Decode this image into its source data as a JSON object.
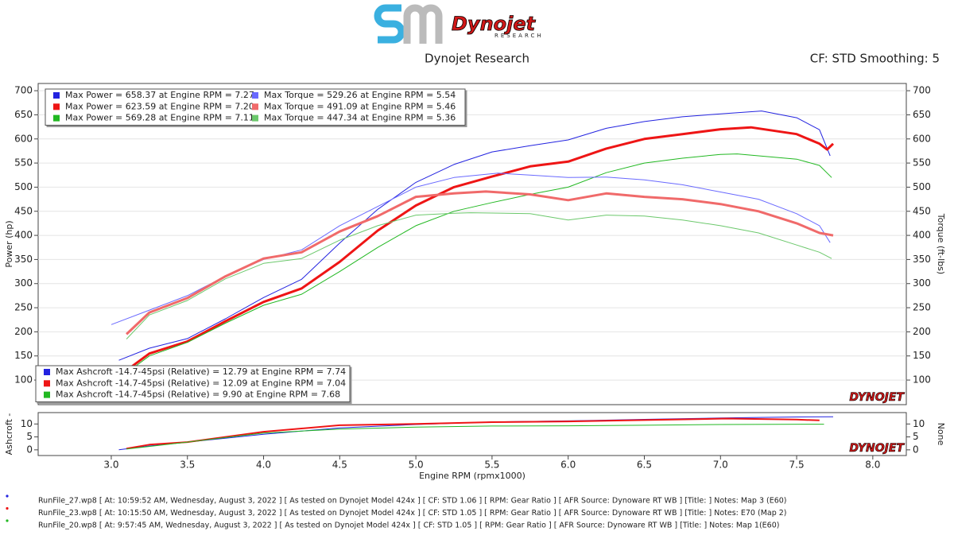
{
  "header": {
    "logo": "Dynojet",
    "logo_sub": "RESEARCH",
    "title": "Dynojet Research",
    "settings": "CF: STD Smoothing: 5"
  },
  "chart_data": [
    {
      "type": "line",
      "ylabel": "Power (hp)",
      "y2label": "Torque (ft-lbs)",
      "watermark": "DYNOJET",
      "grid": true,
      "xlim": [
        2.52,
        8.22
      ],
      "ylim": [
        49,
        715
      ],
      "yticks": [
        100,
        150,
        200,
        250,
        300,
        350,
        400,
        450,
        500,
        550,
        600,
        650,
        700
      ],
      "y2lim": [
        49,
        715
      ],
      "y2ticks": [
        100,
        150,
        200,
        250,
        300,
        350,
        400,
        450,
        500,
        550,
        600,
        650,
        700
      ],
      "series": [
        {
          "name": "Max Power = 658.37 at Engine RPM = 7.27",
          "color": "#2323e0",
          "line_width": 1,
          "x": [
            3.05,
            3.25,
            3.5,
            3.75,
            4.0,
            4.25,
            4.5,
            4.75,
            5.0,
            5.25,
            5.5,
            5.75,
            6.0,
            6.25,
            6.5,
            6.75,
            7.0,
            7.27,
            7.5,
            7.65,
            7.72
          ],
          "values": [
            141,
            166,
            186,
            227,
            271,
            309,
            384,
            454,
            510,
            547,
            573,
            586,
            598,
            622,
            636,
            646,
            652,
            658,
            644,
            619,
            565
          ]
        },
        {
          "name": "Max Power = 623.59 at Engine RPM = 7.20",
          "color": "#ee1515",
          "line_width": 3,
          "x": [
            3.1,
            3.25,
            3.5,
            3.75,
            4.0,
            4.25,
            4.5,
            4.75,
            5.0,
            5.25,
            5.5,
            5.75,
            6.0,
            6.25,
            6.5,
            6.75,
            7.0,
            7.2,
            7.5,
            7.65,
            7.7,
            7.74
          ],
          "values": [
            120,
            155,
            180,
            222,
            262,
            290,
            345,
            410,
            462,
            500,
            522,
            543,
            553,
            580,
            600,
            610,
            620,
            624,
            610,
            590,
            578,
            590
          ]
        },
        {
          "name": "Max Power = 569.28 at Engine RPM = 7.11",
          "color": "#22b822",
          "line_width": 1,
          "x": [
            3.1,
            3.25,
            3.5,
            3.75,
            4.0,
            4.25,
            4.5,
            4.75,
            5.0,
            5.25,
            5.5,
            5.75,
            6.0,
            6.25,
            6.5,
            6.75,
            7.0,
            7.11,
            7.5,
            7.65,
            7.73
          ],
          "values": [
            115,
            150,
            178,
            218,
            255,
            278,
            325,
            375,
            420,
            450,
            468,
            485,
            500,
            530,
            550,
            560,
            568,
            569,
            558,
            545,
            520
          ]
        },
        {
          "name": "Max Torque = 529.26 at Engine RPM = 5.54",
          "color": "#6a6aff",
          "line_width": 1,
          "axis": "y2",
          "x": [
            3.0,
            3.25,
            3.5,
            3.75,
            4.0,
            4.25,
            4.5,
            4.75,
            5.0,
            5.25,
            5.54,
            5.75,
            6.0,
            6.25,
            6.5,
            6.75,
            7.0,
            7.25,
            7.5,
            7.65,
            7.72
          ],
          "values": [
            215,
            245,
            275,
            315,
            350,
            370,
            420,
            460,
            500,
            520,
            529,
            525,
            520,
            521,
            515,
            505,
            490,
            475,
            445,
            420,
            385
          ]
        },
        {
          "name": "Max Torque = 491.09 at Engine RPM = 5.46",
          "color": "#f06a6a",
          "line_width": 3,
          "axis": "y2",
          "x": [
            3.1,
            3.25,
            3.5,
            3.75,
            4.0,
            4.25,
            4.5,
            4.75,
            5.0,
            5.25,
            5.46,
            5.75,
            6.0,
            6.25,
            6.5,
            6.75,
            7.0,
            7.25,
            7.5,
            7.65,
            7.74
          ],
          "values": [
            195,
            240,
            270,
            315,
            352,
            365,
            408,
            440,
            480,
            487,
            491,
            485,
            473,
            487,
            480,
            475,
            465,
            450,
            425,
            405,
            400
          ]
        },
        {
          "name": "Max Torque = 447.34 at Engine RPM = 5.36",
          "color": "#6cc86c",
          "line_width": 1,
          "axis": "y2",
          "x": [
            3.1,
            3.25,
            3.5,
            3.75,
            4.0,
            4.25,
            4.5,
            4.75,
            5.0,
            5.25,
            5.36,
            5.75,
            6.0,
            6.25,
            6.5,
            6.75,
            7.0,
            7.25,
            7.5,
            7.65,
            7.73
          ],
          "values": [
            185,
            235,
            265,
            310,
            342,
            352,
            390,
            420,
            442,
            446,
            447,
            445,
            432,
            442,
            440,
            432,
            420,
            405,
            380,
            365,
            352
          ]
        }
      ]
    },
    {
      "type": "line",
      "ylabel": "Ashcroft -",
      "y2label": "None",
      "xlabel": "Engine RPM (rpmx1000)",
      "watermark": "DYNOJET",
      "xlim": [
        2.52,
        8.22
      ],
      "ylim": [
        -2.2,
        14.4
      ],
      "yticks": [
        0,
        5,
        10
      ],
      "y2lim": [
        -2.2,
        14.4
      ],
      "y2ticks": [
        0,
        5,
        10
      ],
      "xticks": [
        {
          "value": 3,
          "label": "3.0"
        },
        {
          "value": 3.5,
          "label": "3.5"
        },
        {
          "value": 4,
          "label": "4.0"
        },
        {
          "value": 4.5,
          "label": "4.5"
        },
        {
          "value": 5,
          "label": "5.0"
        },
        {
          "value": 5.5,
          "label": "5.5"
        },
        {
          "value": 6,
          "label": "6.0"
        },
        {
          "value": 6.5,
          "label": "6.5"
        },
        {
          "value": 7,
          "label": "7.0"
        },
        {
          "value": 7.5,
          "label": "7.5"
        },
        {
          "value": 8,
          "label": "8.0"
        }
      ],
      "series": [
        {
          "name": "Max Ashcroft -14.7-45psi (Relative) = 12.79 at Engine RPM = 7.74",
          "color": "#2323e0",
          "line_width": 1,
          "x": [
            3.05,
            3.25,
            3.5,
            3.75,
            4.0,
            4.5,
            5.0,
            5.5,
            6.0,
            6.5,
            7.0,
            7.5,
            7.74
          ],
          "values": [
            0,
            1.5,
            3,
            4.5,
            6,
            8.5,
            9.8,
            10.8,
            11.2,
            11.8,
            12.3,
            12.7,
            12.79
          ]
        },
        {
          "name": "Max Ashcroft -14.7-45psi (Relative) = 12.09 at Engine RPM = 7.04",
          "color": "#ee1515",
          "line_width": 2,
          "x": [
            3.1,
            3.25,
            3.5,
            4.0,
            4.5,
            5.0,
            5.5,
            6.0,
            6.5,
            7.04,
            7.5,
            7.65
          ],
          "values": [
            0.5,
            2,
            3,
            7,
            9.5,
            10,
            10.7,
            11,
            11.5,
            12.09,
            11.7,
            11.4
          ]
        },
        {
          "name": "Max Ashcroft -14.7-45psi (Relative) = 9.90 at Engine RPM = 7.68",
          "color": "#22b822",
          "line_width": 1,
          "x": [
            3.1,
            3.5,
            4.0,
            4.5,
            5.0,
            5.5,
            6.0,
            6.5,
            7.0,
            7.68
          ],
          "values": [
            0.3,
            3,
            6.5,
            8,
            8.8,
            9.2,
            9.3,
            9.5,
            9.8,
            9.9
          ]
        }
      ]
    }
  ],
  "footer": {
    "runs": [
      "RunFile_27.wp8 [ At: 10:59:52 AM, Wednesday, August 3, 2022 ] [ As tested on Dynojet Model 424x ] [ CF: STD 1.06 ] [ RPM: Gear Ratio ] [ AFR Source: Dynoware RT WB ] [Title: ]  Notes: Map 3 (E60)",
      "RunFile_23.wp8 [ At: 10:15:50 AM, Wednesday, August 3, 2022 ] [ As tested on Dynojet Model 424x ] [ CF: STD 1.05 ] [ RPM: Gear Ratio ] [ AFR Source: Dynoware RT WB ] [Title: ]  Notes: E70 (Map 2)",
      "RunFile_20.wp8 [ At: 9:57:45 AM, Wednesday, August 3, 2022 ] [ As tested on Dynojet Model 424x ] [ CF: STD 1.05 ] [ RPM: Gear Ratio ] [ AFR Source: Dynoware RT WB ] [Title: ]  Notes: Map 1(E60)"
    ]
  }
}
